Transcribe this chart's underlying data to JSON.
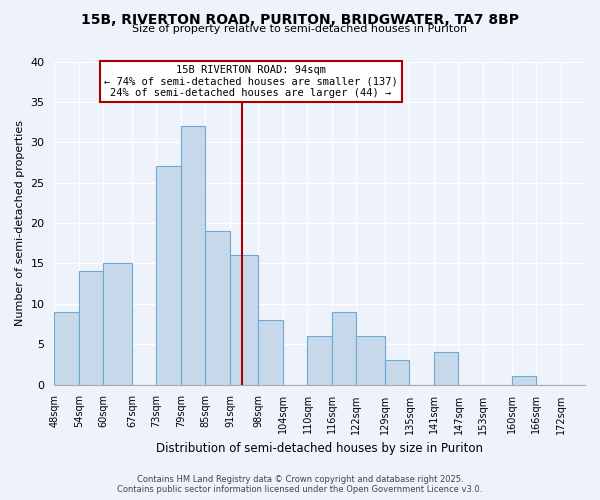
{
  "title": "15B, RIVERTON ROAD, PURITON, BRIDGWATER, TA7 8BP",
  "subtitle": "Size of property relative to semi-detached houses in Puriton",
  "xlabel": "Distribution of semi-detached houses by size in Puriton",
  "ylabel": "Number of semi-detached properties",
  "bin_labels": [
    "48sqm",
    "54sqm",
    "60sqm",
    "67sqm",
    "73sqm",
    "79sqm",
    "85sqm",
    "91sqm",
    "98sqm",
    "104sqm",
    "110sqm",
    "116sqm",
    "122sqm",
    "129sqm",
    "135sqm",
    "141sqm",
    "147sqm",
    "153sqm",
    "160sqm",
    "166sqm",
    "172sqm"
  ],
  "bin_edges": [
    48,
    54,
    60,
    67,
    73,
    79,
    85,
    91,
    98,
    104,
    110,
    116,
    122,
    129,
    135,
    141,
    147,
    153,
    160,
    166,
    172
  ],
  "counts": [
    9,
    14,
    15,
    0,
    27,
    32,
    19,
    16,
    8,
    0,
    6,
    9,
    6,
    3,
    0,
    4,
    0,
    0,
    1,
    0,
    0
  ],
  "bar_color": "#c8d8eb",
  "bar_edge_color": "#6aaad4",
  "property_size": 94,
  "annotation_title": "15B RIVERTON ROAD: 94sqm",
  "annotation_line1": "← 74% of semi-detached houses are smaller (137)",
  "annotation_line2": "24% of semi-detached houses are larger (44) →",
  "vline_color": "#aa0000",
  "annotation_box_color": "#ffffff",
  "annotation_box_edge": "#aa0000",
  "footer_line1": "Contains HM Land Registry data © Crown copyright and database right 2025.",
  "footer_line2": "Contains public sector information licensed under the Open Government Licence v3.0.",
  "background_color": "#eef2fa",
  "grid_color": "#ffffff",
  "ylim": [
    0,
    40
  ],
  "yticks": [
    0,
    5,
    10,
    15,
    20,
    25,
    30,
    35,
    40
  ]
}
